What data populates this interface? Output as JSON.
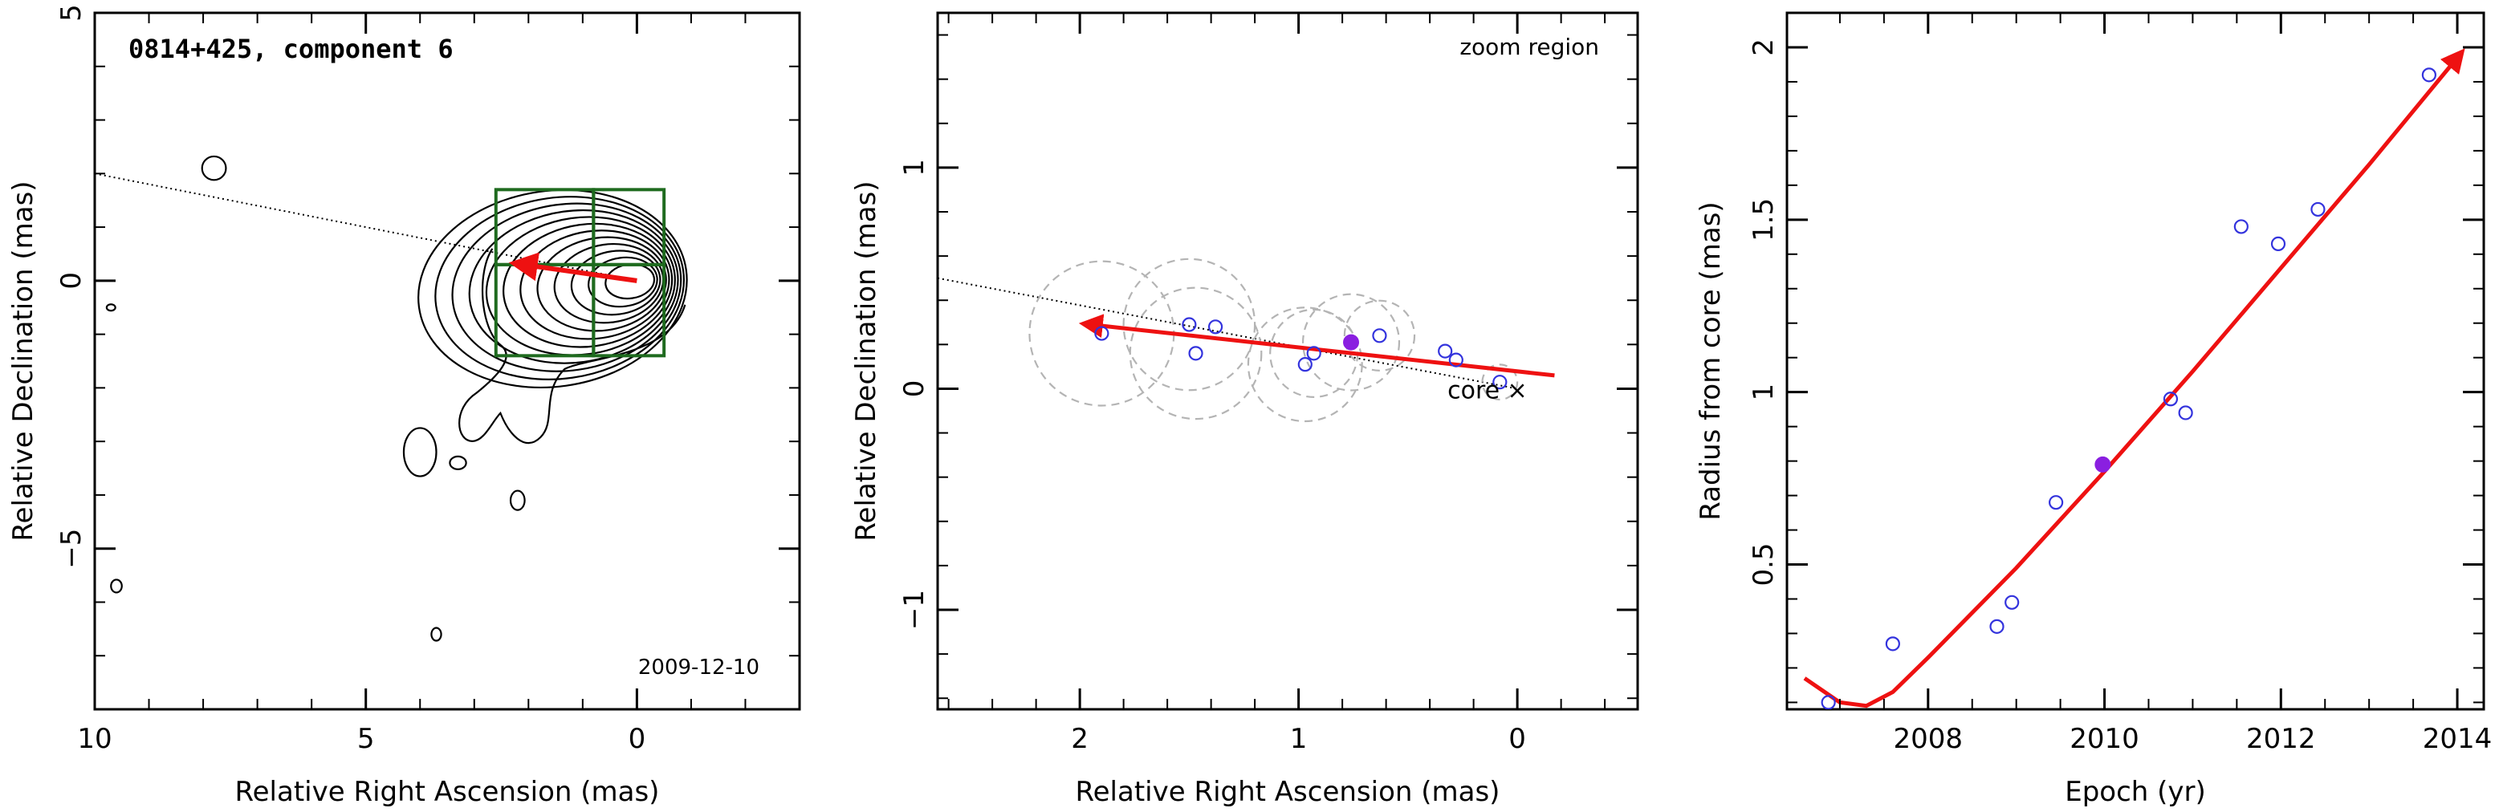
{
  "chart_data": [
    {
      "type": "contour",
      "title": "0814+425, component 6",
      "date_label": "2009-12-10",
      "xlabel": "Relative Right Ascension (mas)",
      "ylabel": "Relative Declination (mas)",
      "xlim": [
        10,
        -3
      ],
      "ylim": [
        -8,
        5
      ],
      "xticks": [
        10,
        5,
        0
      ],
      "yticks": [
        -5,
        0,
        5
      ],
      "ytick_labels": [
        "−5",
        "0",
        "5"
      ],
      "jet_axis_line": {
        "from": [
          10,
          2.0
        ],
        "to": [
          0,
          0
        ]
      },
      "motion_vector": {
        "from": [
          0,
          0
        ],
        "to": [
          2.1,
          0.3
        ]
      },
      "zoom_boxes": [
        {
          "ra": [
            2.6,
            0.8
          ],
          "dec": [
            -1.4,
            0.3
          ]
        },
        {
          "ra": [
            0.8,
            -0.5
          ],
          "dec": [
            -1.4,
            0.3
          ]
        },
        {
          "ra": [
            2.6,
            0.8
          ],
          "dec": [
            0.3,
            1.7
          ]
        },
        {
          "ra": [
            0.8,
            -0.5
          ],
          "dec": [
            0.3,
            1.7
          ]
        }
      ],
      "core_contours": {
        "center": [
          0,
          0
        ],
        "levels": 12
      },
      "isolated_contours": [
        {
          "ra": 7.8,
          "dec": 2.1,
          "rx": 0.22,
          "ry": 0.22
        },
        {
          "ra": 9.7,
          "dec": -0.5,
          "rx": 0.08,
          "ry": 0.06
        },
        {
          "ra": 4.0,
          "dec": -3.2,
          "rx": 0.3,
          "ry": 0.45
        },
        {
          "ra": 3.3,
          "dec": -3.4,
          "rx": 0.15,
          "ry": 0.12
        },
        {
          "ra": 2.2,
          "dec": -4.1,
          "rx": 0.13,
          "ry": 0.18
        },
        {
          "ra": 3.7,
          "dec": -6.6,
          "rx": 0.09,
          "ry": 0.12
        },
        {
          "ra": 9.6,
          "dec": -5.7,
          "rx": 0.1,
          "ry": 0.12
        }
      ]
    },
    {
      "type": "scatter",
      "annotation": "zoom region",
      "core_label": "core",
      "core_marker": "×",
      "xlabel": "Relative Right Ascension (mas)",
      "ylabel": "Relative Declination (mas)",
      "xlim": [
        2.65,
        -0.55
      ],
      "ylim": [
        -1.45,
        1.7
      ],
      "xticks": [
        2,
        1,
        0
      ],
      "yticks": [
        -1,
        0,
        1
      ],
      "ytick_labels": [
        "−1",
        "0",
        "1"
      ],
      "jet_axis_line": {
        "from": [
          2.65,
          0.5
        ],
        "to": [
          0,
          0
        ]
      },
      "motion_vector": {
        "from": [
          -0.17,
          0.06
        ],
        "to": [
          1.95,
          0.29
        ]
      },
      "components": [
        {
          "ra": 1.9,
          "dec": 0.25,
          "size": 0.33
        },
        {
          "ra": 1.5,
          "dec": 0.29,
          "size": 0.3
        },
        {
          "ra": 1.47,
          "dec": 0.16,
          "size": 0.3
        },
        {
          "ra": 1.38,
          "dec": 0.28,
          "size": 0.0
        },
        {
          "ra": 0.97,
          "dec": 0.11,
          "size": 0.26
        },
        {
          "ra": 0.93,
          "dec": 0.16,
          "size": 0.2
        },
        {
          "ra": 0.76,
          "dec": 0.21,
          "size": 0.22,
          "highlight": true
        },
        {
          "ra": 0.63,
          "dec": 0.24,
          "size": 0.16
        },
        {
          "ra": 0.33,
          "dec": 0.17,
          "size": 0.0
        },
        {
          "ra": 0.28,
          "dec": 0.13,
          "size": 0.0
        },
        {
          "ra": 0.08,
          "dec": 0.03,
          "size": 0.08
        }
      ]
    },
    {
      "type": "scatter",
      "xlabel": "Epoch (yr)",
      "ylabel": "Radius from core (mas)",
      "xlim": [
        2006.4,
        2014.3
      ],
      "ylim": [
        0.08,
        2.1
      ],
      "xticks": [
        2008,
        2010,
        2012,
        2014
      ],
      "yticks": [
        0.5,
        1,
        1.5,
        2
      ],
      "series": [
        {
          "x": [
            2006.87,
            2007.6,
            2008.78,
            2008.95,
            2009.45,
            2010.75,
            2010.92,
            2011.55,
            2011.97,
            2012.42,
            2013.68
          ],
          "y": [
            0.1,
            0.27,
            0.32,
            0.39,
            0.68,
            0.98,
            0.94,
            1.48,
            1.43,
            1.53,
            1.92
          ]
        }
      ],
      "highlight_point": {
        "x": 2009.98,
        "y": 0.79
      },
      "fit_curve": {
        "points": [
          [
            2006.6,
            0.17
          ],
          [
            2007.0,
            0.1
          ],
          [
            2007.3,
            0.09
          ],
          [
            2007.6,
            0.13
          ],
          [
            2008.0,
            0.23
          ],
          [
            2009.0,
            0.49
          ],
          [
            2010.0,
            0.77
          ],
          [
            2011.0,
            1.06
          ],
          [
            2012.0,
            1.36
          ],
          [
            2013.0,
            1.66
          ],
          [
            2014.0,
            1.97
          ]
        ]
      }
    }
  ],
  "colors": {
    "axes": "#000000",
    "contour": "#000000",
    "zoom_box": "#1f6b1f",
    "arrow": "#ee1111",
    "component_marker": "#3333dd",
    "highlight_marker": "#8a1fe0",
    "component_circle": "#b4b4b4",
    "axis_line": "#000000"
  }
}
